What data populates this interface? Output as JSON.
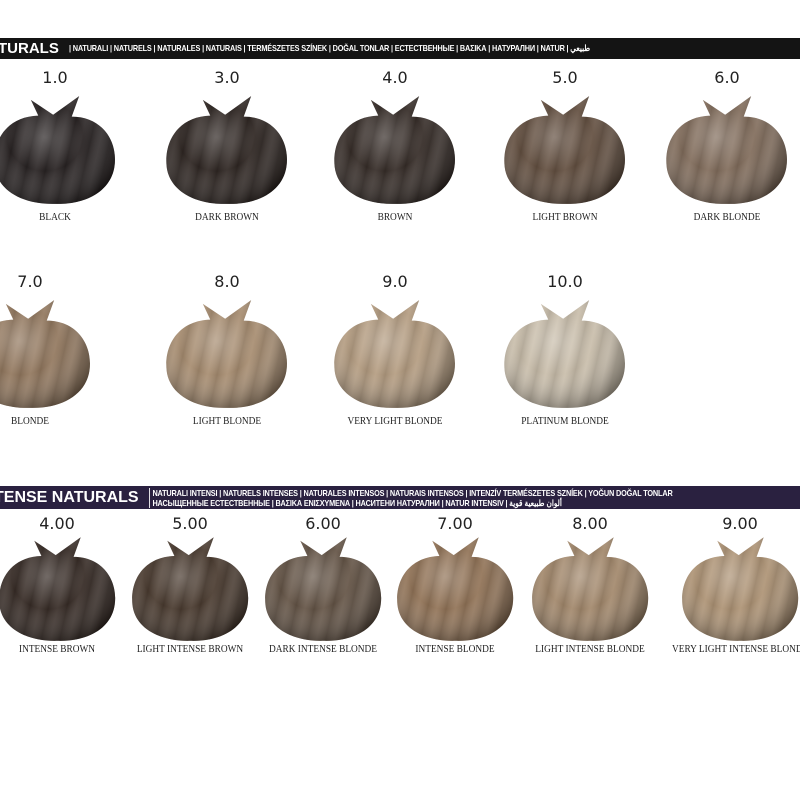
{
  "sections": [
    {
      "title": "TURALS",
      "languages": "| NATURALI | NATURELS | NATURALES | NATURAIS | TERMÉSZETES SZÍNEK | DOĞAL TONLAR | ЕСТЕСТВЕННЫЕ | ΒΑΣΙΚΑ | НАТУРАЛНИ | NATUR | طبيعي",
      "bar_color": "#141414",
      "shades": [
        {
          "number": "1.0",
          "name": "BLACK",
          "color": "#1b1515"
        },
        {
          "number": "3.0",
          "name": "DARK BROWN",
          "color": "#221915"
        },
        {
          "number": "4.0",
          "name": "BROWN",
          "color": "#2a201b"
        },
        {
          "number": "5.0",
          "name": "LIGHT BROWN",
          "color": "#5a4535"
        },
        {
          "number": "6.0",
          "name": "DARK BLONDE",
          "color": "#7a6452"
        },
        {
          "number": "7.0",
          "name": "BLONDE",
          "color": "#8c7055"
        },
        {
          "number": "8.0",
          "name": "LIGHT BLONDE",
          "color": "#a28668"
        },
        {
          "number": "9.0",
          "name": "VERY LIGHT BLONDE",
          "color": "#b0977a"
        },
        {
          "number": "10.0",
          "name": "PLATINUM BLONDE",
          "color": "#c6baa6"
        }
      ]
    },
    {
      "title": "TENSE NATURALS",
      "languages_line1": "NATURALI INTENSI | NATURELS INTENSES | NATURALES INTENSOS | NATURAIS INTENSOS | INTENZÍV TERMÉSZETES SZNÍEK | YOĞUN DOĞAL TONLAR",
      "languages_line2": "НАСЫЩЕННЫЕ ЕСТЕСТВЕННЫЕ | ΒΑΣΙΚΑ ΕΝΙΣΧΥΜΕΝΑ | НАСИТЕНИ НАТУРАЛНИ | NATUR INTENSIV | ألوان طبيعية قوية",
      "bar_color": "#2a2140",
      "shades": [
        {
          "number": "4.00",
          "name": "INTENSE BROWN",
          "color": "#2b1f19"
        },
        {
          "number": "5.00",
          "name": "LIGHT INTENSE BROWN",
          "color": "#3f2f23"
        },
        {
          "number": "6.00",
          "name": "DARK INTENSE BLONDE",
          "color": "#5b4a3b"
        },
        {
          "number": "7.00",
          "name": "INTENSE BLONDE",
          "color": "#8b6b4d"
        },
        {
          "number": "8.00",
          "name": "LIGHT INTENSE BLONDE",
          "color": "#9d8163"
        },
        {
          "number": "9.00",
          "name": "VERY LIGHT INTENSE BLONDE",
          "color": "#a98d6d"
        }
      ]
    }
  ]
}
